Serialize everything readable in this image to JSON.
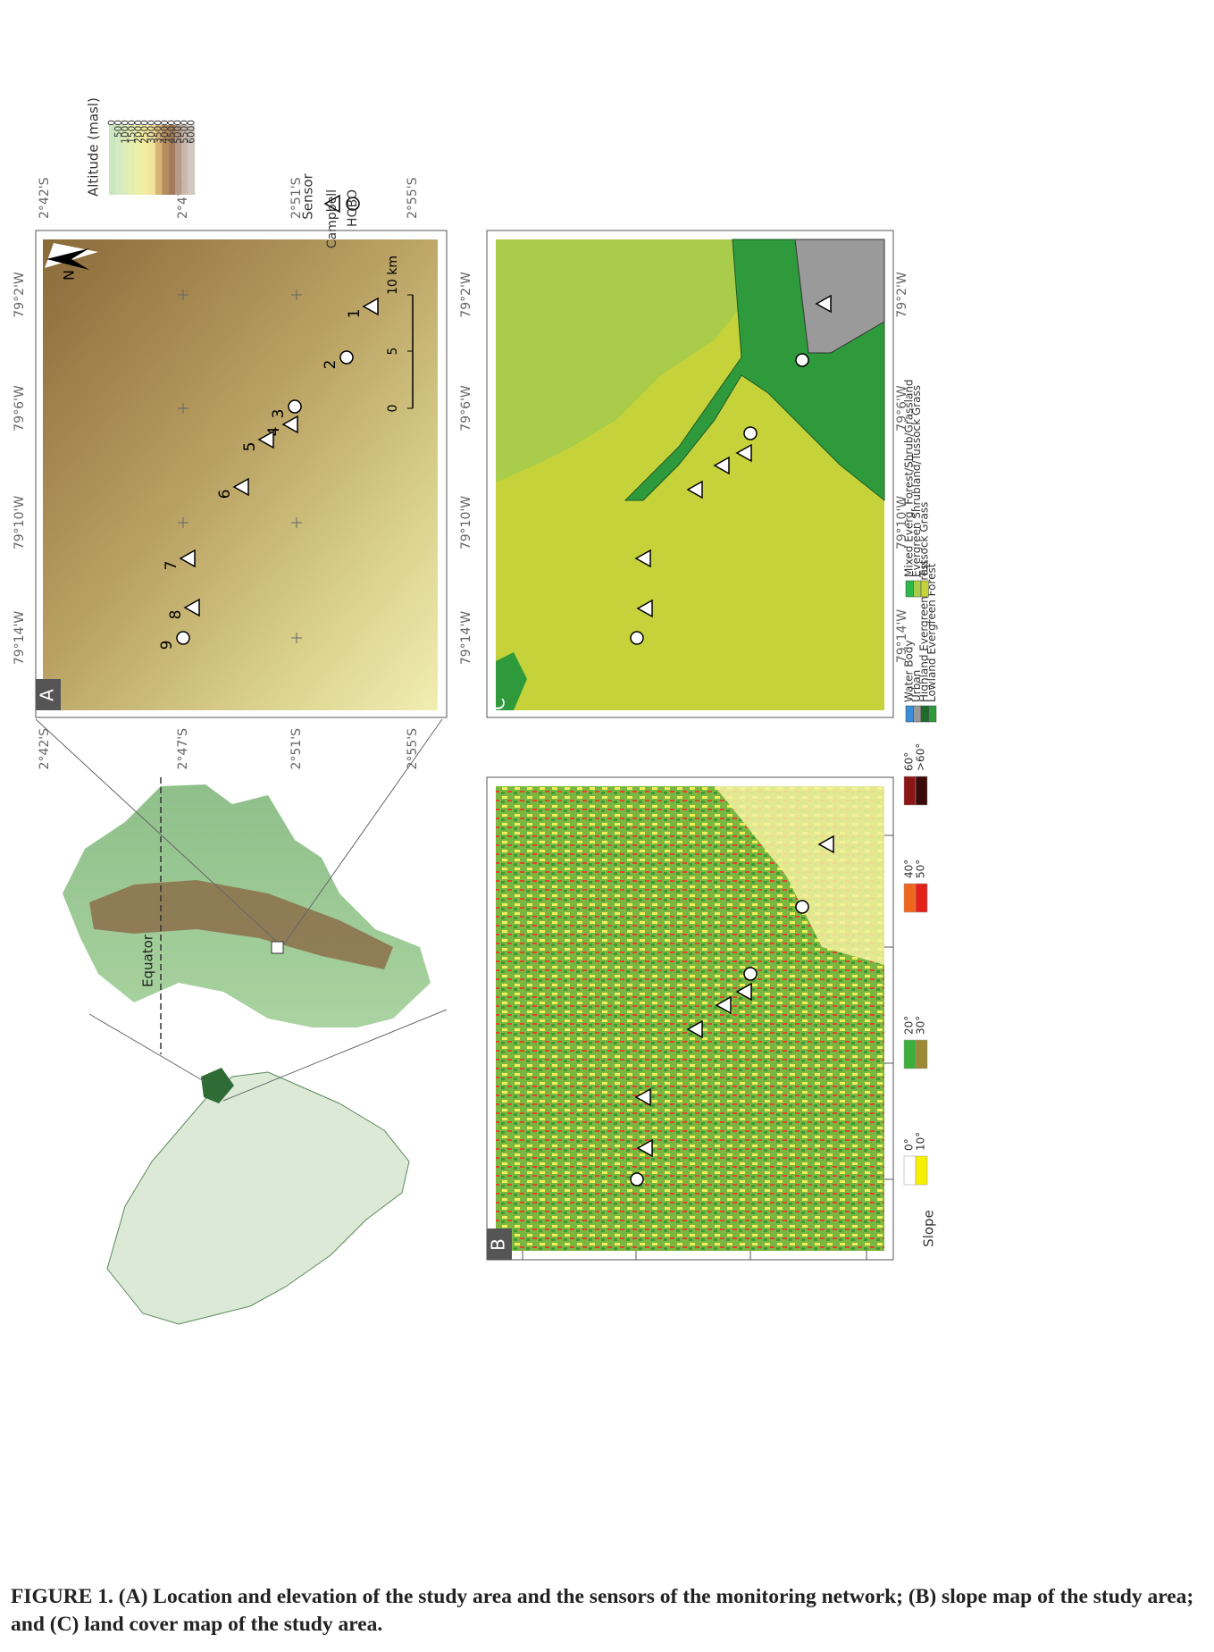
{
  "panel_a": {
    "label": "A",
    "north": "N",
    "lon_ticks": [
      "79°14'W",
      "79°10'W",
      "79°6'W",
      "79°2'W"
    ],
    "lat_ticks": [
      "2°42'S",
      "2°47'S",
      "2°51'S",
      "2°55'S"
    ],
    "sensor_labels": [
      "1",
      "2",
      "3",
      "4",
      "5",
      "6",
      "7",
      "8",
      "9"
    ],
    "scale_labels": [
      "0",
      "5",
      "10 km"
    ]
  },
  "altitude_legend": {
    "title": "Altitude (masl)",
    "labels": [
      "0",
      "500",
      "1000",
      "1500",
      "2000",
      "2500",
      "3000",
      "3500",
      "4000",
      "4500",
      "5000",
      "5500",
      "6000"
    ]
  },
  "sensor_legend": {
    "title": "Sensor",
    "items": [
      "Campbell",
      "HOBO"
    ]
  },
  "ecuador_map": {
    "equator": "Equator"
  },
  "panel_b": {
    "label": "B",
    "legend_title": "Slope",
    "classes": [
      "0°",
      "10°",
      "20°",
      "30°",
      "40°",
      "50°",
      "60°",
      ">60°"
    ]
  },
  "panel_c": {
    "label": "C",
    "classes": [
      "Water Body",
      "Urban",
      "Highland Evergreen Forest",
      "Lowland Evergreen Forest",
      "Mixed Everg. Forest/Shrub/Grassland",
      "Evergreen Shrubland/Tussock Grass",
      "Tussock Grass"
    ]
  },
  "caption": {
    "label": "FIGURE 1.",
    "text": "(A) Location and elevation of the study area and the sensors of the monitoring network; (B) slope map of the study area; and (C) land cover map of the study area."
  }
}
